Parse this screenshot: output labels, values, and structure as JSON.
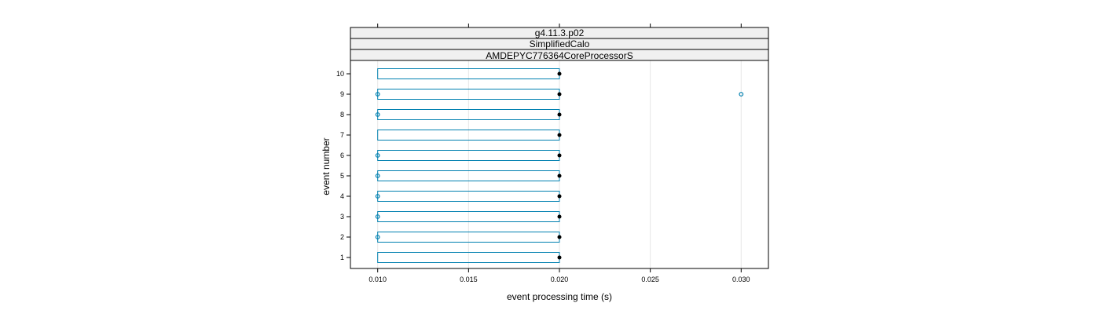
{
  "chart_data": {
    "type": "boxplot",
    "strips": [
      "g4.11.3.p02",
      "SimplifiedCalo",
      "AMDEPYC776364CoreProcessorS"
    ],
    "xlabel": "event processing time (s)",
    "ylabel": "event number",
    "xlim": [
      0.0085,
      0.0315
    ],
    "x_ticks": [
      "0.010",
      "0.015",
      "0.020",
      "0.025",
      "0.030"
    ],
    "x_tick_values": [
      0.01,
      0.015,
      0.02,
      0.025,
      0.03
    ],
    "y_ticks": [
      "1",
      "2",
      "3",
      "4",
      "5",
      "6",
      "7",
      "8",
      "9",
      "10"
    ],
    "grid": true,
    "colors": {
      "box": "#0080b0",
      "median": "#000000",
      "grid": "#e6e6e6",
      "strip_bg": "#f0f0f0"
    },
    "events": [
      {
        "event": 1,
        "q1": 0.01,
        "median": 0.02,
        "q3": 0.02,
        "outliers": []
      },
      {
        "event": 2,
        "q1": 0.01,
        "median": 0.02,
        "q3": 0.02,
        "outliers": [
          0.01
        ]
      },
      {
        "event": 3,
        "q1": 0.01,
        "median": 0.02,
        "q3": 0.02,
        "outliers": [
          0.01
        ]
      },
      {
        "event": 4,
        "q1": 0.01,
        "median": 0.02,
        "q3": 0.02,
        "outliers": [
          0.01
        ]
      },
      {
        "event": 5,
        "q1": 0.01,
        "median": 0.02,
        "q3": 0.02,
        "outliers": [
          0.01
        ]
      },
      {
        "event": 6,
        "q1": 0.01,
        "median": 0.02,
        "q3": 0.02,
        "outliers": [
          0.01
        ]
      },
      {
        "event": 7,
        "q1": 0.01,
        "median": 0.02,
        "q3": 0.02,
        "outliers": []
      },
      {
        "event": 8,
        "q1": 0.01,
        "median": 0.02,
        "q3": 0.02,
        "outliers": [
          0.01
        ]
      },
      {
        "event": 9,
        "q1": 0.01,
        "median": 0.02,
        "q3": 0.02,
        "outliers": [
          0.01,
          0.03
        ]
      },
      {
        "event": 10,
        "q1": 0.01,
        "median": 0.02,
        "q3": 0.02,
        "outliers": []
      }
    ]
  }
}
